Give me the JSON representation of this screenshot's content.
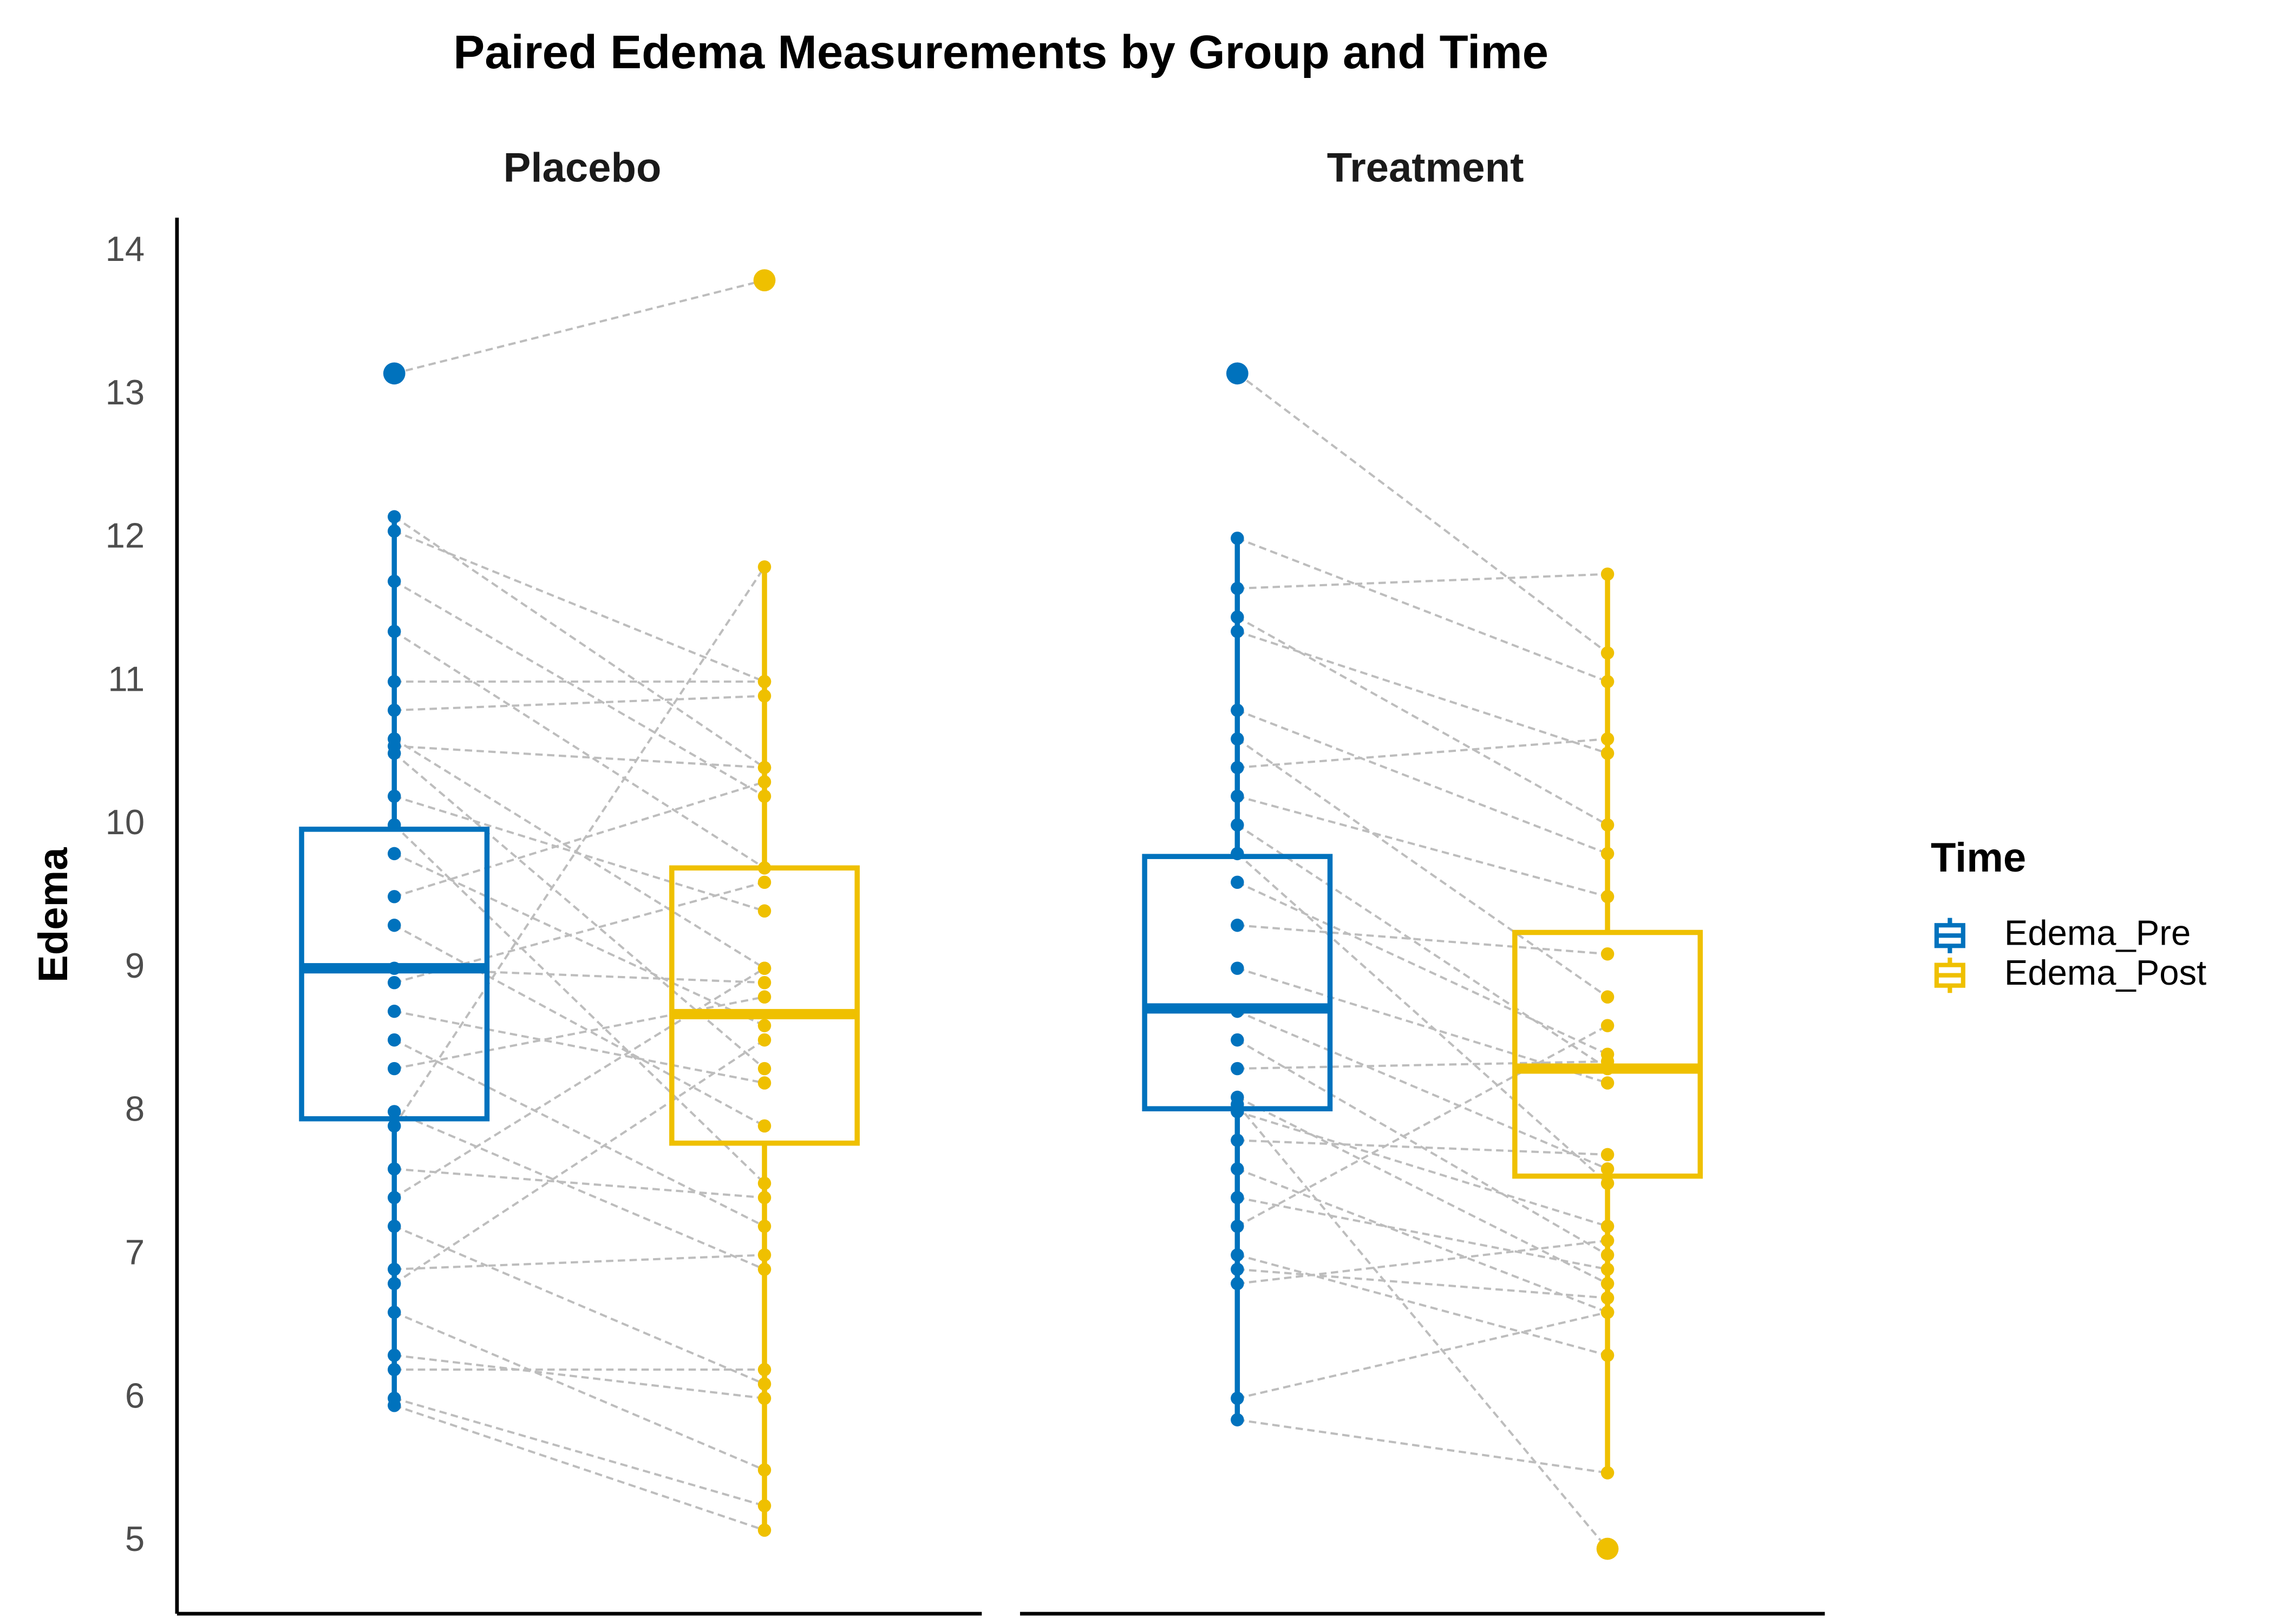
{
  "chart_data": {
    "type": "paired_boxplot",
    "title": "Paired Edema Measurements by Group and Time",
    "y_label": "Edema",
    "legend_title": "Time",
    "legend_position": "right",
    "ylim": [
      4.7,
      14.2
    ],
    "yticks": [
      5,
      6,
      7,
      8,
      9,
      10,
      11,
      12,
      13,
      14
    ],
    "series": [
      {
        "name": "Edema_Pre",
        "color": "#0072BD"
      },
      {
        "name": "Edema_Post",
        "color": "#EFC000"
      }
    ],
    "facets": [
      {
        "name": "Placebo",
        "boxes": [
          {
            "min": 5.95,
            "q1": 7.95,
            "median": 9.0,
            "q3": 9.97,
            "max": 12.15
          },
          {
            "min": 5.08,
            "q1": 7.78,
            "median": 8.68,
            "q3": 9.7,
            "max": 11.8
          }
        ],
        "values": [
          [
            13.15,
            12.15,
            12.05,
            11.7,
            11.35,
            11.0,
            10.8,
            10.6,
            10.55,
            10.5,
            10.2,
            10.0,
            9.8,
            9.5,
            9.3,
            9.0,
            8.9,
            8.7,
            8.5,
            8.3,
            8.0,
            7.9,
            7.6,
            7.4,
            7.2,
            6.9,
            6.8,
            6.6,
            6.3,
            6.2,
            6.0,
            5.95
          ],
          [
            13.8,
            10.4,
            11.0,
            10.2,
            9.7,
            11.0,
            10.9,
            9.0,
            10.4,
            8.3,
            9.4,
            7.5,
            8.6,
            10.3,
            7.9,
            8.9,
            9.6,
            8.2,
            7.2,
            8.8,
            6.9,
            11.8,
            7.4,
            9.0,
            6.1,
            7.0,
            8.5,
            5.5,
            6.0,
            6.2,
            5.25,
            5.08
          ]
        ]
      },
      {
        "name": "Treatment",
        "boxes": [
          {
            "min": 5.85,
            "q1": 8.02,
            "median": 8.72,
            "q3": 9.78,
            "max": 12.0
          },
          {
            "min": 5.48,
            "q1": 7.55,
            "median": 8.3,
            "q3": 9.25,
            "max": 11.75
          }
        ],
        "values": [
          [
            13.15,
            12.0,
            11.65,
            11.45,
            11.35,
            10.8,
            10.6,
            10.4,
            10.2,
            10.0,
            9.8,
            9.6,
            9.3,
            9.0,
            8.7,
            8.5,
            8.3,
            8.1,
            8.0,
            7.8,
            7.6,
            7.4,
            7.2,
            7.0,
            6.9,
            6.8,
            6.0,
            5.85,
            8.05
          ],
          [
            11.2,
            11.0,
            11.75,
            10.0,
            10.5,
            9.8,
            8.8,
            10.6,
            9.5,
            8.3,
            7.5,
            8.4,
            9.1,
            8.2,
            7.6,
            7.0,
            8.35,
            6.8,
            7.2,
            7.7,
            6.6,
            6.9,
            8.6,
            6.3,
            6.7,
            7.1,
            6.6,
            5.48,
            4.95
          ]
        ]
      }
    ]
  }
}
